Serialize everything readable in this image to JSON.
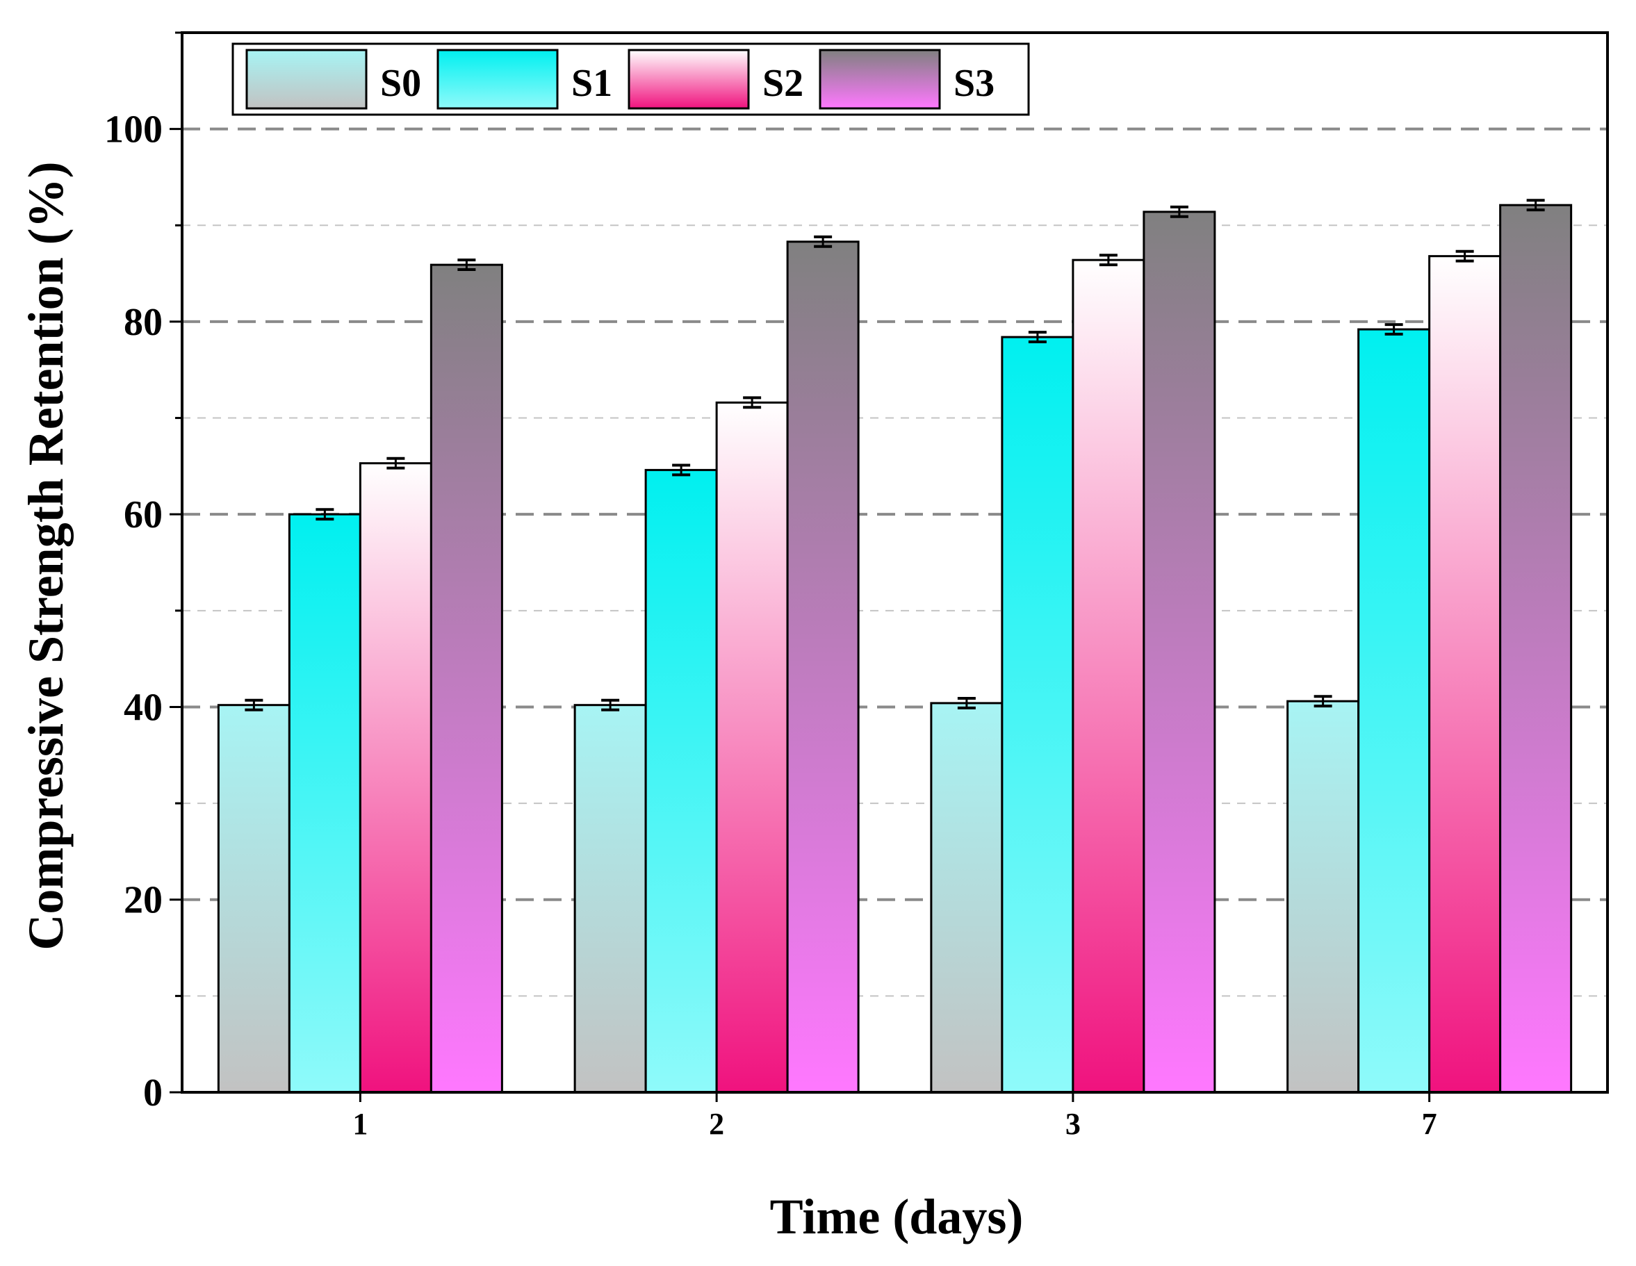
{
  "chart_data": {
    "type": "bar",
    "title": "",
    "xlabel": "Time (days)",
    "ylabel": "Compressive Strength Retention (%)",
    "categories": [
      "1",
      "2",
      "3",
      "7"
    ],
    "ylim": [
      0,
      110
    ],
    "yticks": [
      0,
      20,
      40,
      60,
      80,
      100
    ],
    "ytick_labels": [
      "0",
      "20",
      "40",
      "60",
      "80",
      "100"
    ],
    "grid": "horizontal dashed",
    "legend_position": "top-left",
    "series": [
      {
        "name": "S0",
        "values": [
          40.2,
          40.2,
          40.4,
          40.6
        ],
        "errors": [
          0.5,
          0.5,
          0.5,
          0.5
        ],
        "color_top": "#a7f4f4",
        "color_bottom": "#c2c2c2"
      },
      {
        "name": "S1",
        "values": [
          60.0,
          64.6,
          78.4,
          79.2
        ],
        "errors": [
          0.5,
          0.5,
          0.5,
          0.5
        ],
        "color_top": "#00f0f0",
        "color_bottom": "#8ffafa"
      },
      {
        "name": "S2",
        "values": [
          65.3,
          71.6,
          86.4,
          86.8
        ],
        "errors": [
          0.5,
          0.5,
          0.5,
          0.5
        ],
        "color_top": "#ffffff",
        "color_bottom": "#f0127e"
      },
      {
        "name": "S3",
        "values": [
          85.9,
          88.3,
          91.4,
          92.1
        ],
        "errors": [
          0.5,
          0.5,
          0.5,
          0.5
        ],
        "color_top": "#808080",
        "color_bottom": "#ff78ff"
      }
    ]
  }
}
